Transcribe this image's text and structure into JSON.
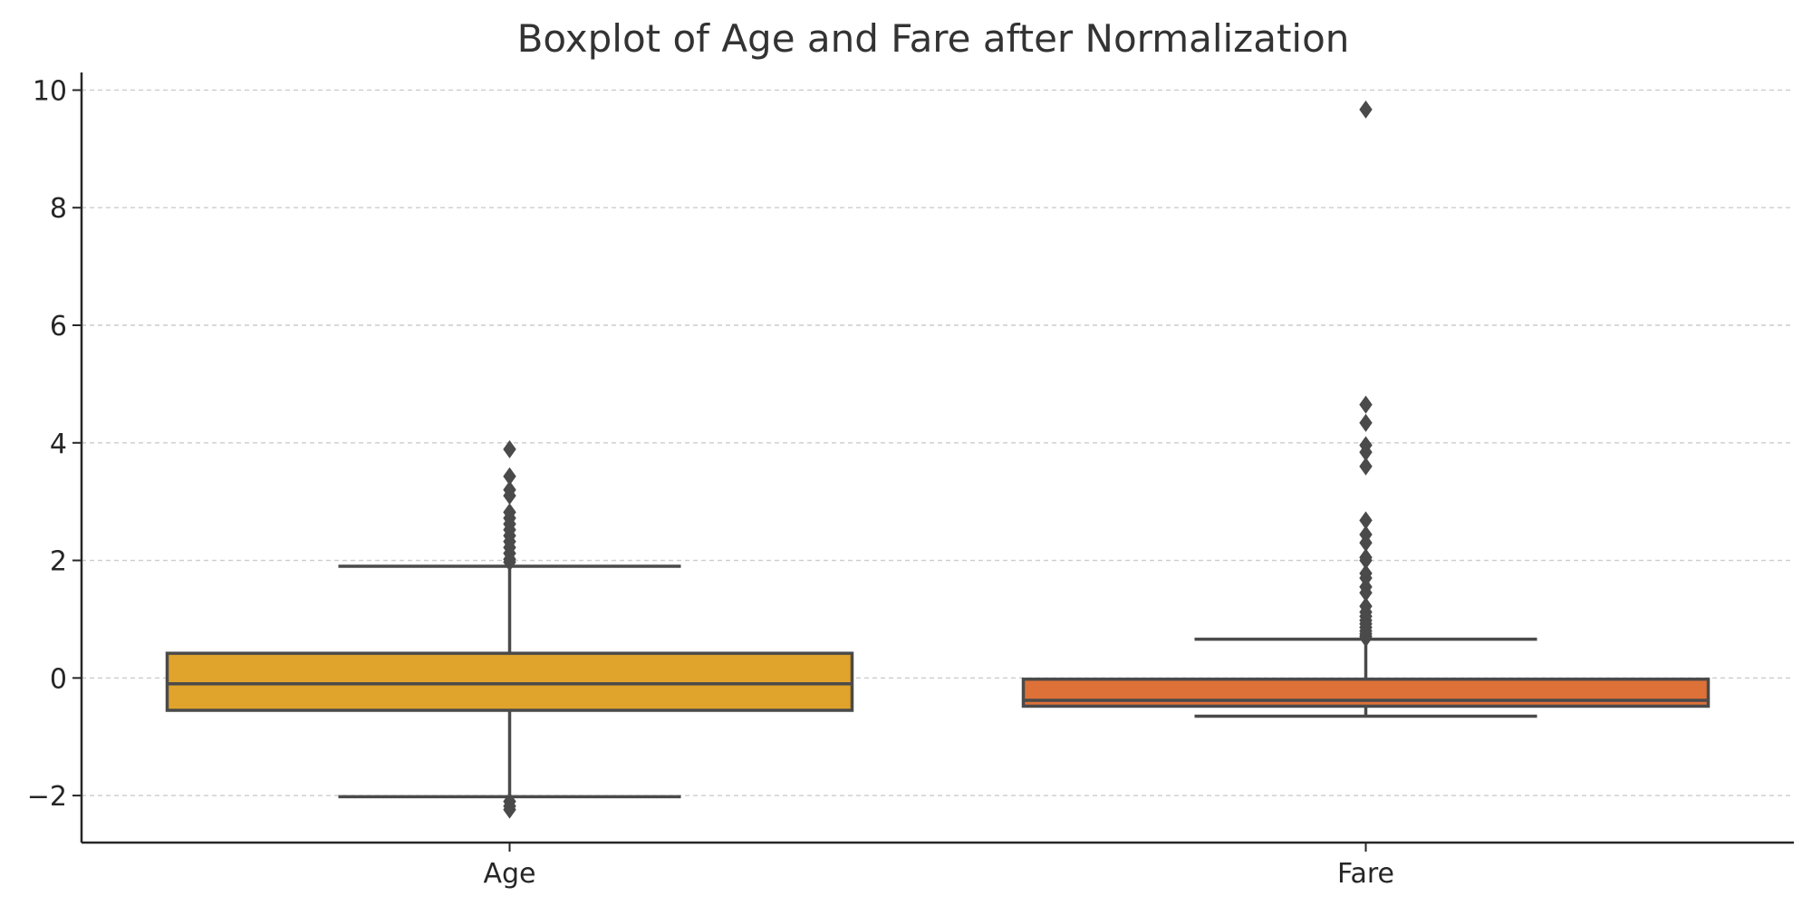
{
  "chart_data": {
    "type": "box",
    "title": "Boxplot of Age and Fare after Normalization",
    "xlabel": "",
    "ylabel": "",
    "ylim": [
      -2.8,
      10.3
    ],
    "yticks": [
      -2,
      0,
      2,
      4,
      6,
      8,
      10
    ],
    "ytick_labels": [
      "−2",
      "0",
      "2",
      "4",
      "6",
      "8",
      "10"
    ],
    "grid": {
      "y": true,
      "style": "dashed"
    },
    "categories": [
      "Age",
      "Fare"
    ],
    "series": [
      {
        "category": "Age",
        "color": "#e0a32b",
        "q1": -0.55,
        "median": -0.1,
        "q3": 0.42,
        "whisker_low": -2.02,
        "whisker_high": 1.9,
        "outliers": [
          3.89,
          3.43,
          3.2,
          3.1,
          2.82,
          2.72,
          2.62,
          2.52,
          2.42,
          2.32,
          2.22,
          2.12,
          2.02,
          1.97,
          -2.1,
          -2.18,
          -2.24
        ]
      },
      {
        "category": "Fare",
        "color": "#de7138",
        "q1": -0.48,
        "median": -0.38,
        "q3": -0.02,
        "whisker_low": -0.65,
        "whisker_high": 0.66,
        "outliers": [
          9.67,
          4.65,
          4.34,
          3.96,
          3.84,
          3.6,
          2.68,
          2.44,
          2.3,
          2.05,
          2.0,
          1.78,
          1.7,
          1.55,
          1.45,
          1.22,
          1.12,
          1.05,
          0.98,
          0.92,
          0.86,
          0.8,
          0.75,
          0.71,
          0.68
        ]
      }
    ]
  }
}
